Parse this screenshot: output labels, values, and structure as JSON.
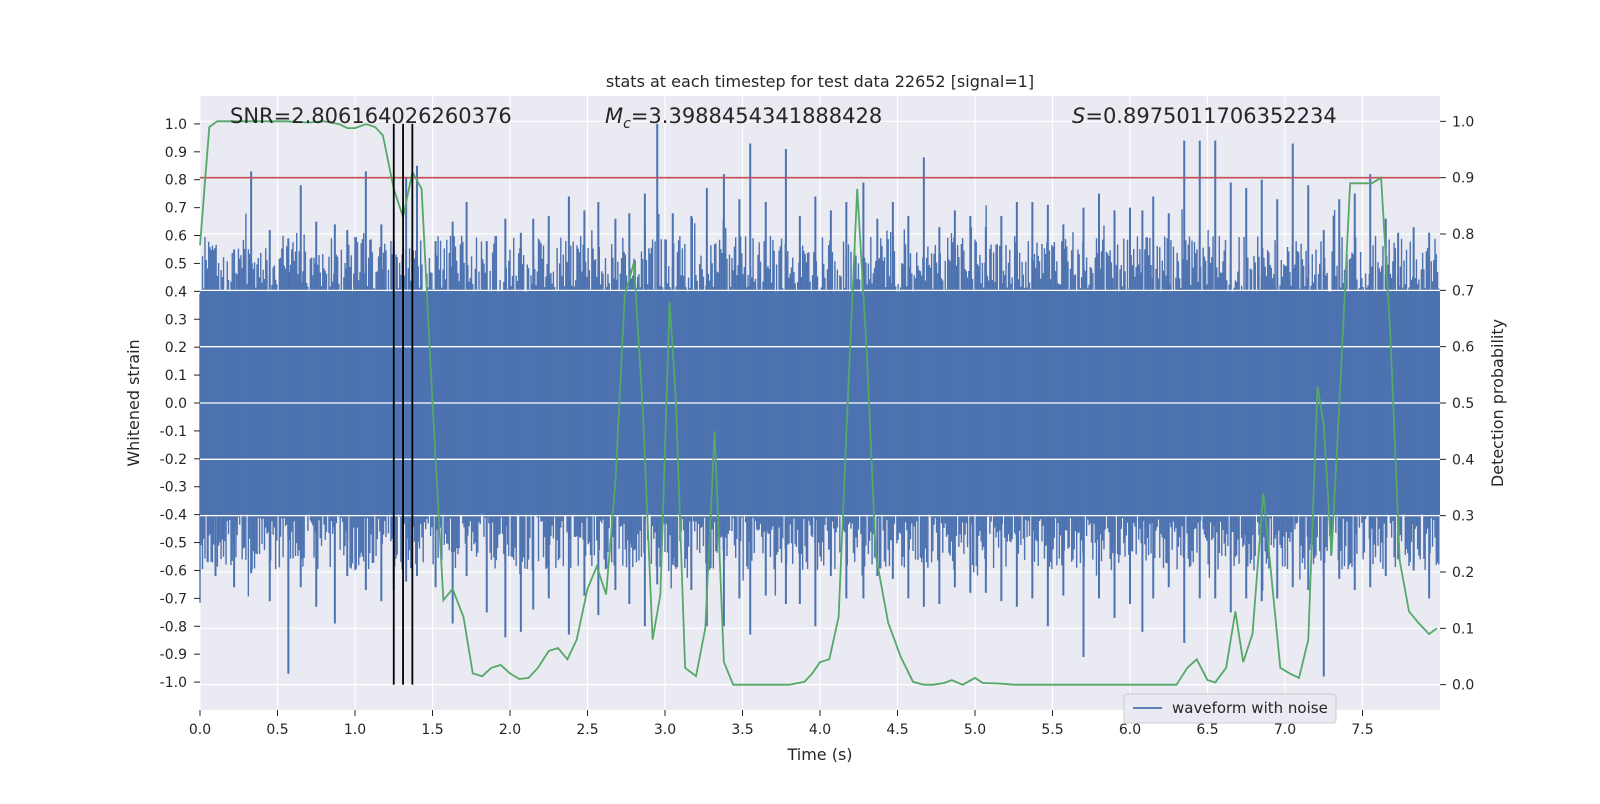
{
  "chart_data": {
    "type": "line",
    "title": "stats at each timestep for test data 22652 [signal=1]",
    "xlabel": "Time (s)",
    "ylabel": "Whitened strain",
    "y2label": "Detection probability",
    "xlim": [
      0,
      8
    ],
    "ylim": [
      -1.1,
      1.1
    ],
    "y2lim": [
      -0.045,
      1.045
    ],
    "xticks": [
      "0.0",
      "0.5",
      "1.0",
      "1.5",
      "2.0",
      "2.5",
      "3.0",
      "3.5",
      "4.0",
      "4.5",
      "5.0",
      "5.5",
      "6.0",
      "6.5",
      "7.0",
      "7.5"
    ],
    "yticks": [
      "1.0",
      "0.9",
      "0.8",
      "0.7",
      "0.6",
      "0.5",
      "0.4",
      "0.3",
      "0.2",
      "0.1",
      "0.0",
      "-0.1",
      "-0.2",
      "-0.3",
      "-0.4",
      "-0.5",
      "-0.6",
      "-0.7",
      "-0.8",
      "-0.9",
      "-1.0"
    ],
    "y2ticks": [
      "1.0",
      "0.9",
      "0.8",
      "0.7",
      "0.6",
      "0.5",
      "0.4",
      "0.3",
      "0.2",
      "0.1",
      "0.0"
    ],
    "grid": true,
    "legend_position": "lower-right",
    "annotations": {
      "snr": "SNR=2.806164026260376",
      "mc_symbol": "M",
      "mc_sub": "c",
      "mc_value": "=3.3988454341888428",
      "s_symbol": "S",
      "s_value": "=0.8975011706352234"
    },
    "threshold": 0.9,
    "vlines": [
      1.25,
      1.31,
      1.37
    ],
    "series": [
      {
        "name": "waveform with noise",
        "axis": "left",
        "color": "#4c72b0",
        "band_upper": 0.4,
        "band_lower": -0.4,
        "peaks": [
          [
            0.05,
            0.47,
            -0.57
          ],
          [
            0.1,
            0.52,
            -0.62
          ],
          [
            0.22,
            0.55,
            -0.66
          ],
          [
            0.33,
            0.83,
            -0.61
          ],
          [
            0.45,
            0.62,
            -0.71
          ],
          [
            0.57,
            0.59,
            -0.97
          ],
          [
            0.65,
            0.78,
            -0.66
          ],
          [
            0.75,
            0.65,
            -0.73
          ],
          [
            0.87,
            0.64,
            -0.79
          ],
          [
            0.95,
            0.62,
            -0.62
          ],
          [
            1.07,
            0.83,
            -0.67
          ],
          [
            1.17,
            0.64,
            -0.71
          ],
          [
            1.25,
            0.58,
            -0.67
          ],
          [
            1.33,
            0.81,
            -0.64
          ],
          [
            1.4,
            0.85,
            -0.62
          ],
          [
            1.52,
            0.58,
            -0.66
          ],
          [
            1.63,
            0.65,
            -0.79
          ],
          [
            1.72,
            0.72,
            -0.62
          ],
          [
            1.85,
            0.58,
            -0.75
          ],
          [
            1.97,
            0.66,
            -0.84
          ],
          [
            2.07,
            0.61,
            -0.82
          ],
          [
            2.15,
            0.66,
            -0.74
          ],
          [
            2.25,
            0.67,
            -0.7
          ],
          [
            2.38,
            0.74,
            -0.83
          ],
          [
            2.48,
            0.69,
            -0.69
          ],
          [
            2.57,
            0.72,
            -0.76
          ],
          [
            2.68,
            0.66,
            -0.67
          ],
          [
            2.77,
            0.68,
            -0.72
          ],
          [
            2.87,
            0.75,
            -0.8
          ],
          [
            2.95,
            1.0,
            -0.65
          ],
          [
            3.05,
            0.68,
            -0.58
          ],
          [
            3.17,
            0.67,
            -0.67
          ],
          [
            3.27,
            0.77,
            -0.8
          ],
          [
            3.38,
            0.82,
            -0.8
          ],
          [
            3.48,
            0.73,
            -0.7
          ],
          [
            3.55,
            0.93,
            -0.83
          ],
          [
            3.65,
            0.72,
            -0.69
          ],
          [
            3.78,
            0.91,
            -0.72
          ],
          [
            3.87,
            0.67,
            -0.72
          ],
          [
            3.97,
            0.74,
            -0.8
          ],
          [
            4.07,
            0.69,
            -0.62
          ],
          [
            4.17,
            0.72,
            -0.7
          ],
          [
            4.28,
            0.79,
            -0.7
          ],
          [
            4.37,
            0.66,
            -0.62
          ],
          [
            4.47,
            0.72,
            -0.63
          ],
          [
            4.57,
            0.67,
            -0.7
          ],
          [
            4.67,
            0.88,
            -0.73
          ],
          [
            4.77,
            0.63,
            -0.72
          ],
          [
            4.87,
            0.69,
            -0.66
          ],
          [
            4.97,
            0.67,
            -0.68
          ],
          [
            5.07,
            0.63,
            -0.68
          ],
          [
            5.17,
            0.67,
            -0.71
          ],
          [
            5.27,
            0.72,
            -0.73
          ],
          [
            5.37,
            0.72,
            -0.7
          ],
          [
            5.47,
            0.71,
            -0.8
          ],
          [
            5.57,
            0.64,
            -0.69
          ],
          [
            5.7,
            0.7,
            -0.91
          ],
          [
            5.8,
            0.75,
            -0.7
          ],
          [
            5.9,
            0.69,
            -0.77
          ],
          [
            6.0,
            0.7,
            -0.72
          ],
          [
            6.08,
            0.69,
            -0.82
          ],
          [
            6.15,
            0.74,
            -0.7
          ],
          [
            6.25,
            0.68,
            -0.66
          ],
          [
            6.35,
            0.94,
            -0.86
          ],
          [
            6.45,
            0.94,
            -0.7
          ],
          [
            6.55,
            0.94,
            -0.7
          ],
          [
            6.65,
            0.79,
            -0.75
          ],
          [
            6.75,
            0.77,
            -0.7
          ],
          [
            6.85,
            0.8,
            -0.71
          ],
          [
            6.95,
            0.73,
            -0.7
          ],
          [
            7.05,
            0.93,
            -0.66
          ],
          [
            7.15,
            0.78,
            -0.67
          ],
          [
            7.25,
            0.62,
            -0.98
          ],
          [
            7.35,
            0.73,
            -0.63
          ],
          [
            7.45,
            0.75,
            -0.67
          ],
          [
            7.55,
            0.82,
            -0.66
          ],
          [
            7.65,
            0.66,
            -0.62
          ],
          [
            7.73,
            0.61,
            -0.56
          ],
          [
            7.83,
            0.63,
            -0.6
          ],
          [
            7.93,
            0.61,
            -0.7
          ]
        ]
      },
      {
        "name": "detection probability",
        "axis": "right",
        "color": "#55a868",
        "x": [
          0.0,
          0.06,
          0.11,
          0.17,
          0.25,
          0.4,
          0.55,
          0.7,
          0.8,
          0.9,
          0.95,
          1.0,
          1.07,
          1.13,
          1.18,
          1.25,
          1.31,
          1.37,
          1.43,
          1.5,
          1.57,
          1.63,
          1.7,
          1.76,
          1.82,
          1.88,
          1.94,
          2.0,
          2.06,
          2.12,
          2.18,
          2.25,
          2.31,
          2.37,
          2.43,
          2.5,
          2.56,
          2.62,
          2.68,
          2.74,
          2.8,
          2.86,
          2.92,
          2.97,
          3.03,
          3.07,
          3.13,
          3.2,
          3.26,
          3.32,
          3.38,
          3.44,
          3.5,
          3.6,
          3.7,
          3.8,
          3.9,
          3.95,
          4.0,
          4.06,
          4.12,
          4.18,
          4.24,
          4.3,
          4.36,
          4.44,
          4.52,
          4.6,
          4.67,
          4.73,
          4.8,
          4.85,
          4.92,
          5.0,
          5.05,
          5.15,
          5.25,
          5.4,
          5.6,
          5.8,
          6.0,
          6.2,
          6.3,
          6.37,
          6.43,
          6.5,
          6.55,
          6.62,
          6.68,
          6.73,
          6.79,
          6.86,
          6.92,
          6.97,
          7.03,
          7.09,
          7.15,
          7.21,
          7.25,
          7.3,
          7.36,
          7.42,
          7.49,
          7.56,
          7.62,
          7.68,
          7.74,
          7.8,
          7.86,
          7.93,
          7.98
        ],
        "y": [
          0.78,
          0.99,
          1.0,
          1.0,
          1.0,
          1.0,
          1.0,
          0.998,
          1.0,
          0.995,
          0.988,
          0.988,
          0.995,
          0.99,
          0.975,
          0.88,
          0.83,
          0.91,
          0.88,
          0.5,
          0.15,
          0.17,
          0.12,
          0.02,
          0.015,
          0.03,
          0.035,
          0.02,
          0.01,
          0.012,
          0.03,
          0.06,
          0.065,
          0.045,
          0.08,
          0.17,
          0.21,
          0.16,
          0.36,
          0.69,
          0.75,
          0.47,
          0.08,
          0.16,
          0.68,
          0.51,
          0.03,
          0.015,
          0.1,
          0.45,
          0.04,
          0.0,
          0.0,
          0.0,
          0.0,
          0.0,
          0.005,
          0.02,
          0.04,
          0.045,
          0.12,
          0.51,
          0.88,
          0.6,
          0.23,
          0.11,
          0.05,
          0.005,
          0.0,
          0.0,
          0.003,
          0.008,
          0.0,
          0.012,
          0.003,
          0.002,
          0.0,
          0.0,
          0.0,
          0.0,
          0.0,
          0.0,
          0.0,
          0.03,
          0.045,
          0.008,
          0.004,
          0.03,
          0.13,
          0.04,
          0.09,
          0.34,
          0.17,
          0.03,
          0.02,
          0.012,
          0.08,
          0.53,
          0.46,
          0.23,
          0.55,
          0.89,
          0.89,
          0.89,
          0.9,
          0.62,
          0.22,
          0.13,
          0.11,
          0.09,
          0.1
        ]
      }
    ]
  }
}
